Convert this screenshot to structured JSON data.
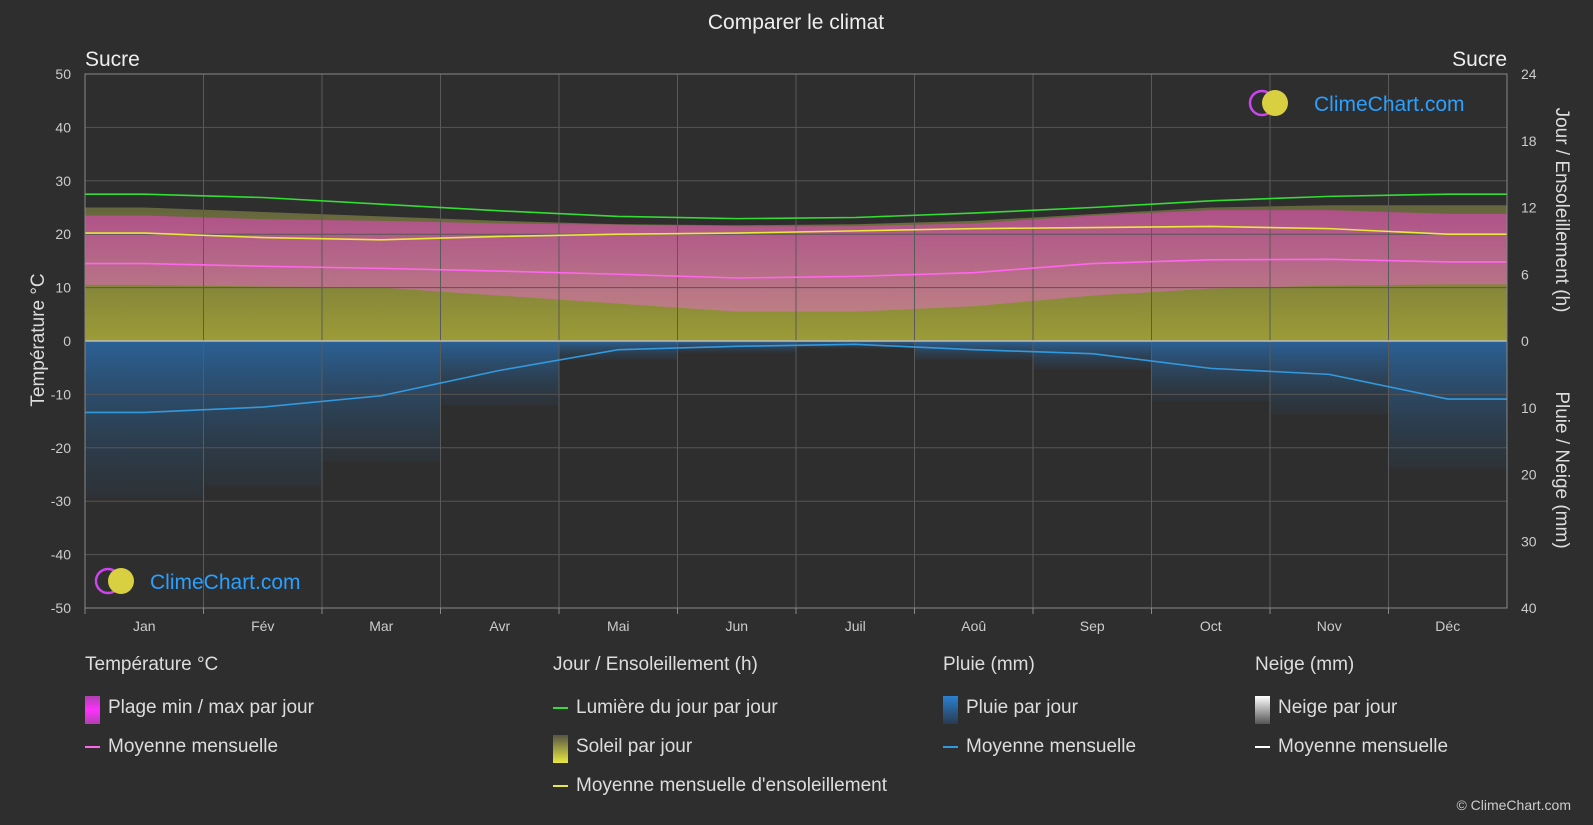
{
  "title": "Comparer le climat",
  "location_left": "Sucre",
  "location_right": "Sucre",
  "brand": "ClimeChart.com",
  "copyright": "© ClimeChart.com",
  "colors": {
    "background": "#2e2e2e",
    "temp_range": "#e040c0",
    "temp_mean": "#ff66ee",
    "daylight": "#33dd33",
    "sunshine_fill": "#b8b838",
    "sunshine_mean": "#e8e840",
    "rain_fill": "#2a70b0",
    "rain_mean": "#3399dd",
    "snow_mean": "#ffffff",
    "brand": "#2aa0ff"
  },
  "chart_data": {
    "type": "line",
    "months": [
      "Jan",
      "Fév",
      "Mar",
      "Avr",
      "Mai",
      "Jun",
      "Juil",
      "Aoû",
      "Sep",
      "Oct",
      "Nov",
      "Déc"
    ],
    "left_axis": {
      "label": "Température °C",
      "ylim": [
        -50,
        50
      ],
      "ticks": [
        50,
        40,
        30,
        20,
        10,
        0,
        -10,
        -20,
        -30,
        -40,
        -50
      ]
    },
    "right_axis_top": {
      "label": "Jour / Ensoleillement (h)",
      "ylim": [
        0,
        24
      ],
      "ticks": [
        24,
        18,
        12,
        6,
        0
      ]
    },
    "right_axis_bottom": {
      "label": "Pluie / Neige (mm)",
      "ylim": [
        0,
        40
      ],
      "ticks": [
        10,
        20,
        30,
        40
      ]
    },
    "grid": true,
    "series": [
      {
        "name": "Lumière du jour par jour",
        "axis": "hours",
        "values": [
          13.2,
          12.9,
          12.3,
          11.7,
          11.2,
          11.0,
          11.1,
          11.5,
          12.0,
          12.6,
          13.0,
          13.2
        ]
      },
      {
        "name": "Moyenne mensuelle d'ensoleillement",
        "axis": "hours",
        "values": [
          9.7,
          9.3,
          9.1,
          9.4,
          9.6,
          9.7,
          9.9,
          10.1,
          10.2,
          10.3,
          10.1,
          9.6
        ]
      },
      {
        "name": "Moyenne mensuelle",
        "kind": "temperature_mean",
        "axis": "temp",
        "values": [
          14.5,
          14.0,
          13.6,
          13.1,
          12.5,
          11.8,
          12.1,
          12.8,
          14.5,
          15.2,
          15.3,
          14.8
        ]
      },
      {
        "name": "Plage min / max par jour",
        "kind": "temperature_range",
        "axis": "temp",
        "min": [
          10.5,
          10.2,
          10.0,
          8.5,
          7.0,
          5.5,
          5.5,
          6.5,
          8.5,
          9.8,
          10.4,
          10.6
        ],
        "max": [
          23.5,
          22.8,
          22.5,
          22.0,
          21.8,
          21.5,
          21.5,
          22.0,
          23.5,
          24.5,
          24.5,
          23.8
        ]
      },
      {
        "name": "Soleil par jour",
        "kind": "sunshine_daily",
        "axis": "hours",
        "values": [
          12.0,
          11.6,
          11.2,
          10.8,
          10.5,
          10.4,
          10.5,
          10.8,
          11.4,
          12.0,
          12.2,
          12.2
        ]
      },
      {
        "name": "Moyenne mensuelle",
        "kind": "rain_mean",
        "axis": "mm",
        "values": [
          10.7,
          9.9,
          8.2,
          4.4,
          1.3,
          0.8,
          0.5,
          1.3,
          1.9,
          4.1,
          5.0,
          8.7
        ]
      },
      {
        "name": "Moyenne mensuelle",
        "kind": "snow_mean",
        "axis": "mm",
        "values": [
          0,
          0,
          0,
          0,
          0,
          0,
          0,
          0,
          0,
          0,
          0,
          0
        ]
      }
    ]
  },
  "legend": {
    "temperature": {
      "title": "Température °C",
      "items": [
        {
          "label": "Plage min / max par jour",
          "swatch": "box-magenta"
        },
        {
          "label": "Moyenne mensuelle",
          "swatch": "line-pink"
        }
      ]
    },
    "sun": {
      "title": "Jour / Ensoleillement (h)",
      "items": [
        {
          "label": "Lumière du jour par jour",
          "swatch": "line-green"
        },
        {
          "label": "Soleil par jour",
          "swatch": "box-yellow"
        },
        {
          "label": "Moyenne mensuelle d'ensoleillement",
          "swatch": "line-yellow"
        }
      ]
    },
    "rain": {
      "title": "Pluie (mm)",
      "items": [
        {
          "label": "Pluie par jour",
          "swatch": "box-blue"
        },
        {
          "label": "Moyenne mensuelle",
          "swatch": "line-blue"
        }
      ]
    },
    "snow": {
      "title": "Neige (mm)",
      "items": [
        {
          "label": "Neige par jour",
          "swatch": "box-white"
        },
        {
          "label": "Moyenne mensuelle",
          "swatch": "line-white"
        }
      ]
    }
  }
}
